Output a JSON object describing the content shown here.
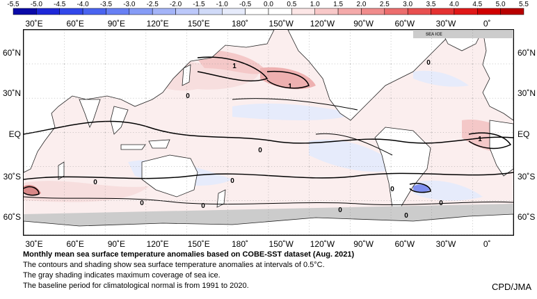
{
  "colorbar": {
    "ticks": [
      "-5.5",
      "-5.0",
      "-4.5",
      "-4.0",
      "-3.5",
      "-3.0",
      "-2.5",
      "-2.0",
      "-1.5",
      "-1.0",
      "-0.5",
      "0.0",
      "0.5",
      "1.0",
      "1.5",
      "2.0",
      "2.5",
      "3.0",
      "3.5",
      "4.0",
      "4.5",
      "5.0",
      "5.5"
    ],
    "colors": [
      "#0a0aa8",
      "#1e28d8",
      "#3248ea",
      "#4a64f0",
      "#6880f4",
      "#869cf6",
      "#a4b4f8",
      "#bcc8fa",
      "#d0daf8",
      "#e6ebfb",
      "#ffffff",
      "#ffffff",
      "#fce6e6",
      "#f8c8c8",
      "#f4aaaa",
      "#f08c8c",
      "#ec6e6e",
      "#e85050",
      "#e43232",
      "#e01818",
      "#d00000",
      "#b80000"
    ]
  },
  "map": {
    "top_lon_labels": [
      "30˚E",
      "60˚E",
      "90˚E",
      "120˚E",
      "150˚E",
      "180˚",
      "150˚W",
      "120˚W",
      "90˚W",
      "60˚W",
      "30˚W",
      "0˚"
    ],
    "bottom_lon_labels": [
      "30˚E",
      "60˚E",
      "90˚E",
      "120˚E",
      "150˚E",
      "180˚",
      "150˚W",
      "120˚W",
      "90˚W",
      "60˚W",
      "30˚W",
      "0˚"
    ],
    "lat_labels": [
      "60˚N",
      "30˚N",
      "EQ",
      "30˚S",
      "60˚S"
    ],
    "sea_ice_label": "SEA ICE",
    "contour_labels": [
      "1",
      "1",
      "0",
      "0",
      "0",
      "1",
      "0",
      "0",
      "0",
      "0",
      "0",
      "0",
      "0",
      "0"
    ]
  },
  "caption": {
    "title": "Monthly mean sea surface temperature anomalies based on COBE-SST dataset (Aug. 2021)",
    "line1": "The contours and shading show sea surface temperature anomalies at intervals of 0.5°C.",
    "line2": "The gray shading indicates maximum coverage of sea ice.",
    "line3": "The baseline period for climatological normal is from 1991 to 2020."
  },
  "credit": "CPD/JMA"
}
